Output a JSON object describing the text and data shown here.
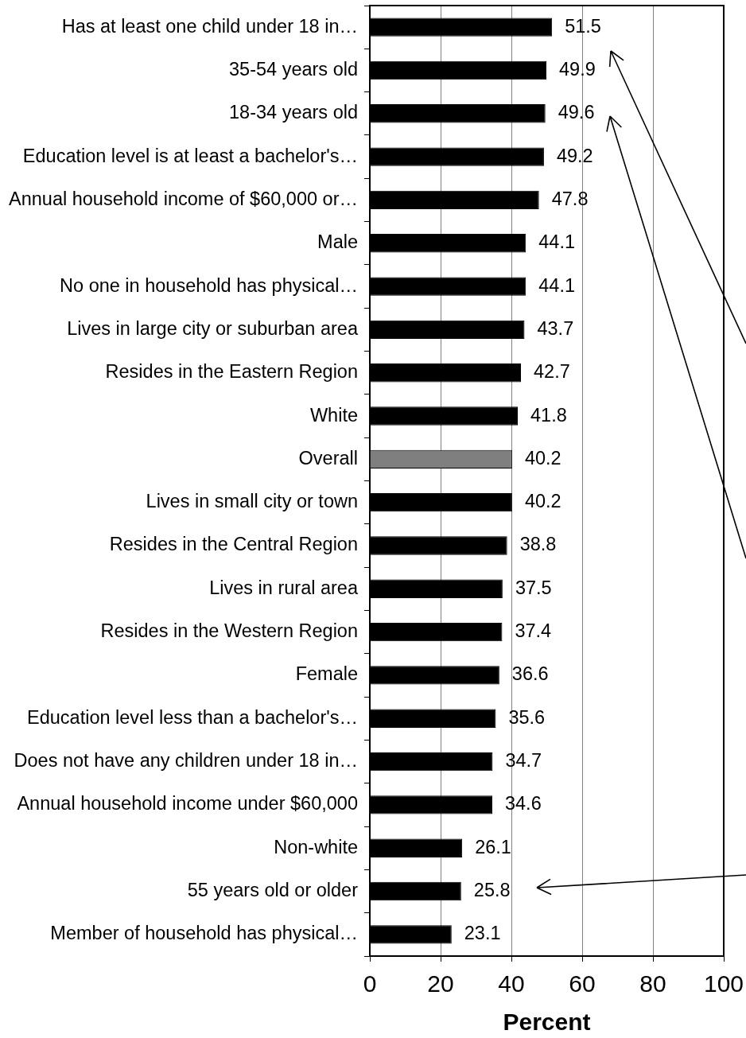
{
  "chart_data": {
    "type": "bar",
    "orientation": "horizontal",
    "categories": [
      "Has at least one child under 18 in…",
      "35-54 years old",
      "18-34 years old",
      "Education level is at least a bachelor's…",
      "Annual household income of $60,000 or…",
      "Male",
      "No one in household has physical…",
      "Lives in large city or suburban area",
      "Resides in the Eastern Region",
      "White",
      "Overall",
      "Lives in small city or town",
      "Resides in the Central Region",
      "Lives in rural area",
      "Resides in the Western Region",
      "Female",
      "Education level less than a bachelor's…",
      "Does not have any children under 18 in…",
      "Annual household income under $60,000",
      "Non-white",
      "55 years old or older",
      "Member of household has physical…"
    ],
    "values": [
      51.5,
      49.9,
      49.6,
      49.2,
      47.8,
      44.1,
      44.1,
      43.7,
      42.7,
      41.8,
      40.2,
      40.2,
      38.8,
      37.5,
      37.4,
      36.6,
      35.6,
      34.7,
      34.6,
      26.1,
      25.8,
      23.1
    ],
    "colors": [
      "#000000",
      "#000000",
      "#000000",
      "#000000",
      "#000000",
      "#000000",
      "#000000",
      "#000000",
      "#000000",
      "#000000",
      "#7f7f7f",
      "#000000",
      "#000000",
      "#000000",
      "#000000",
      "#000000",
      "#000000",
      "#000000",
      "#000000",
      "#000000",
      "#000000",
      "#000000"
    ],
    "xlim": [
      0,
      100
    ],
    "xticks": [
      0,
      20,
      40,
      60,
      80,
      100
    ],
    "xlabel": "Percent",
    "data_labels": true,
    "grid": "x"
  }
}
